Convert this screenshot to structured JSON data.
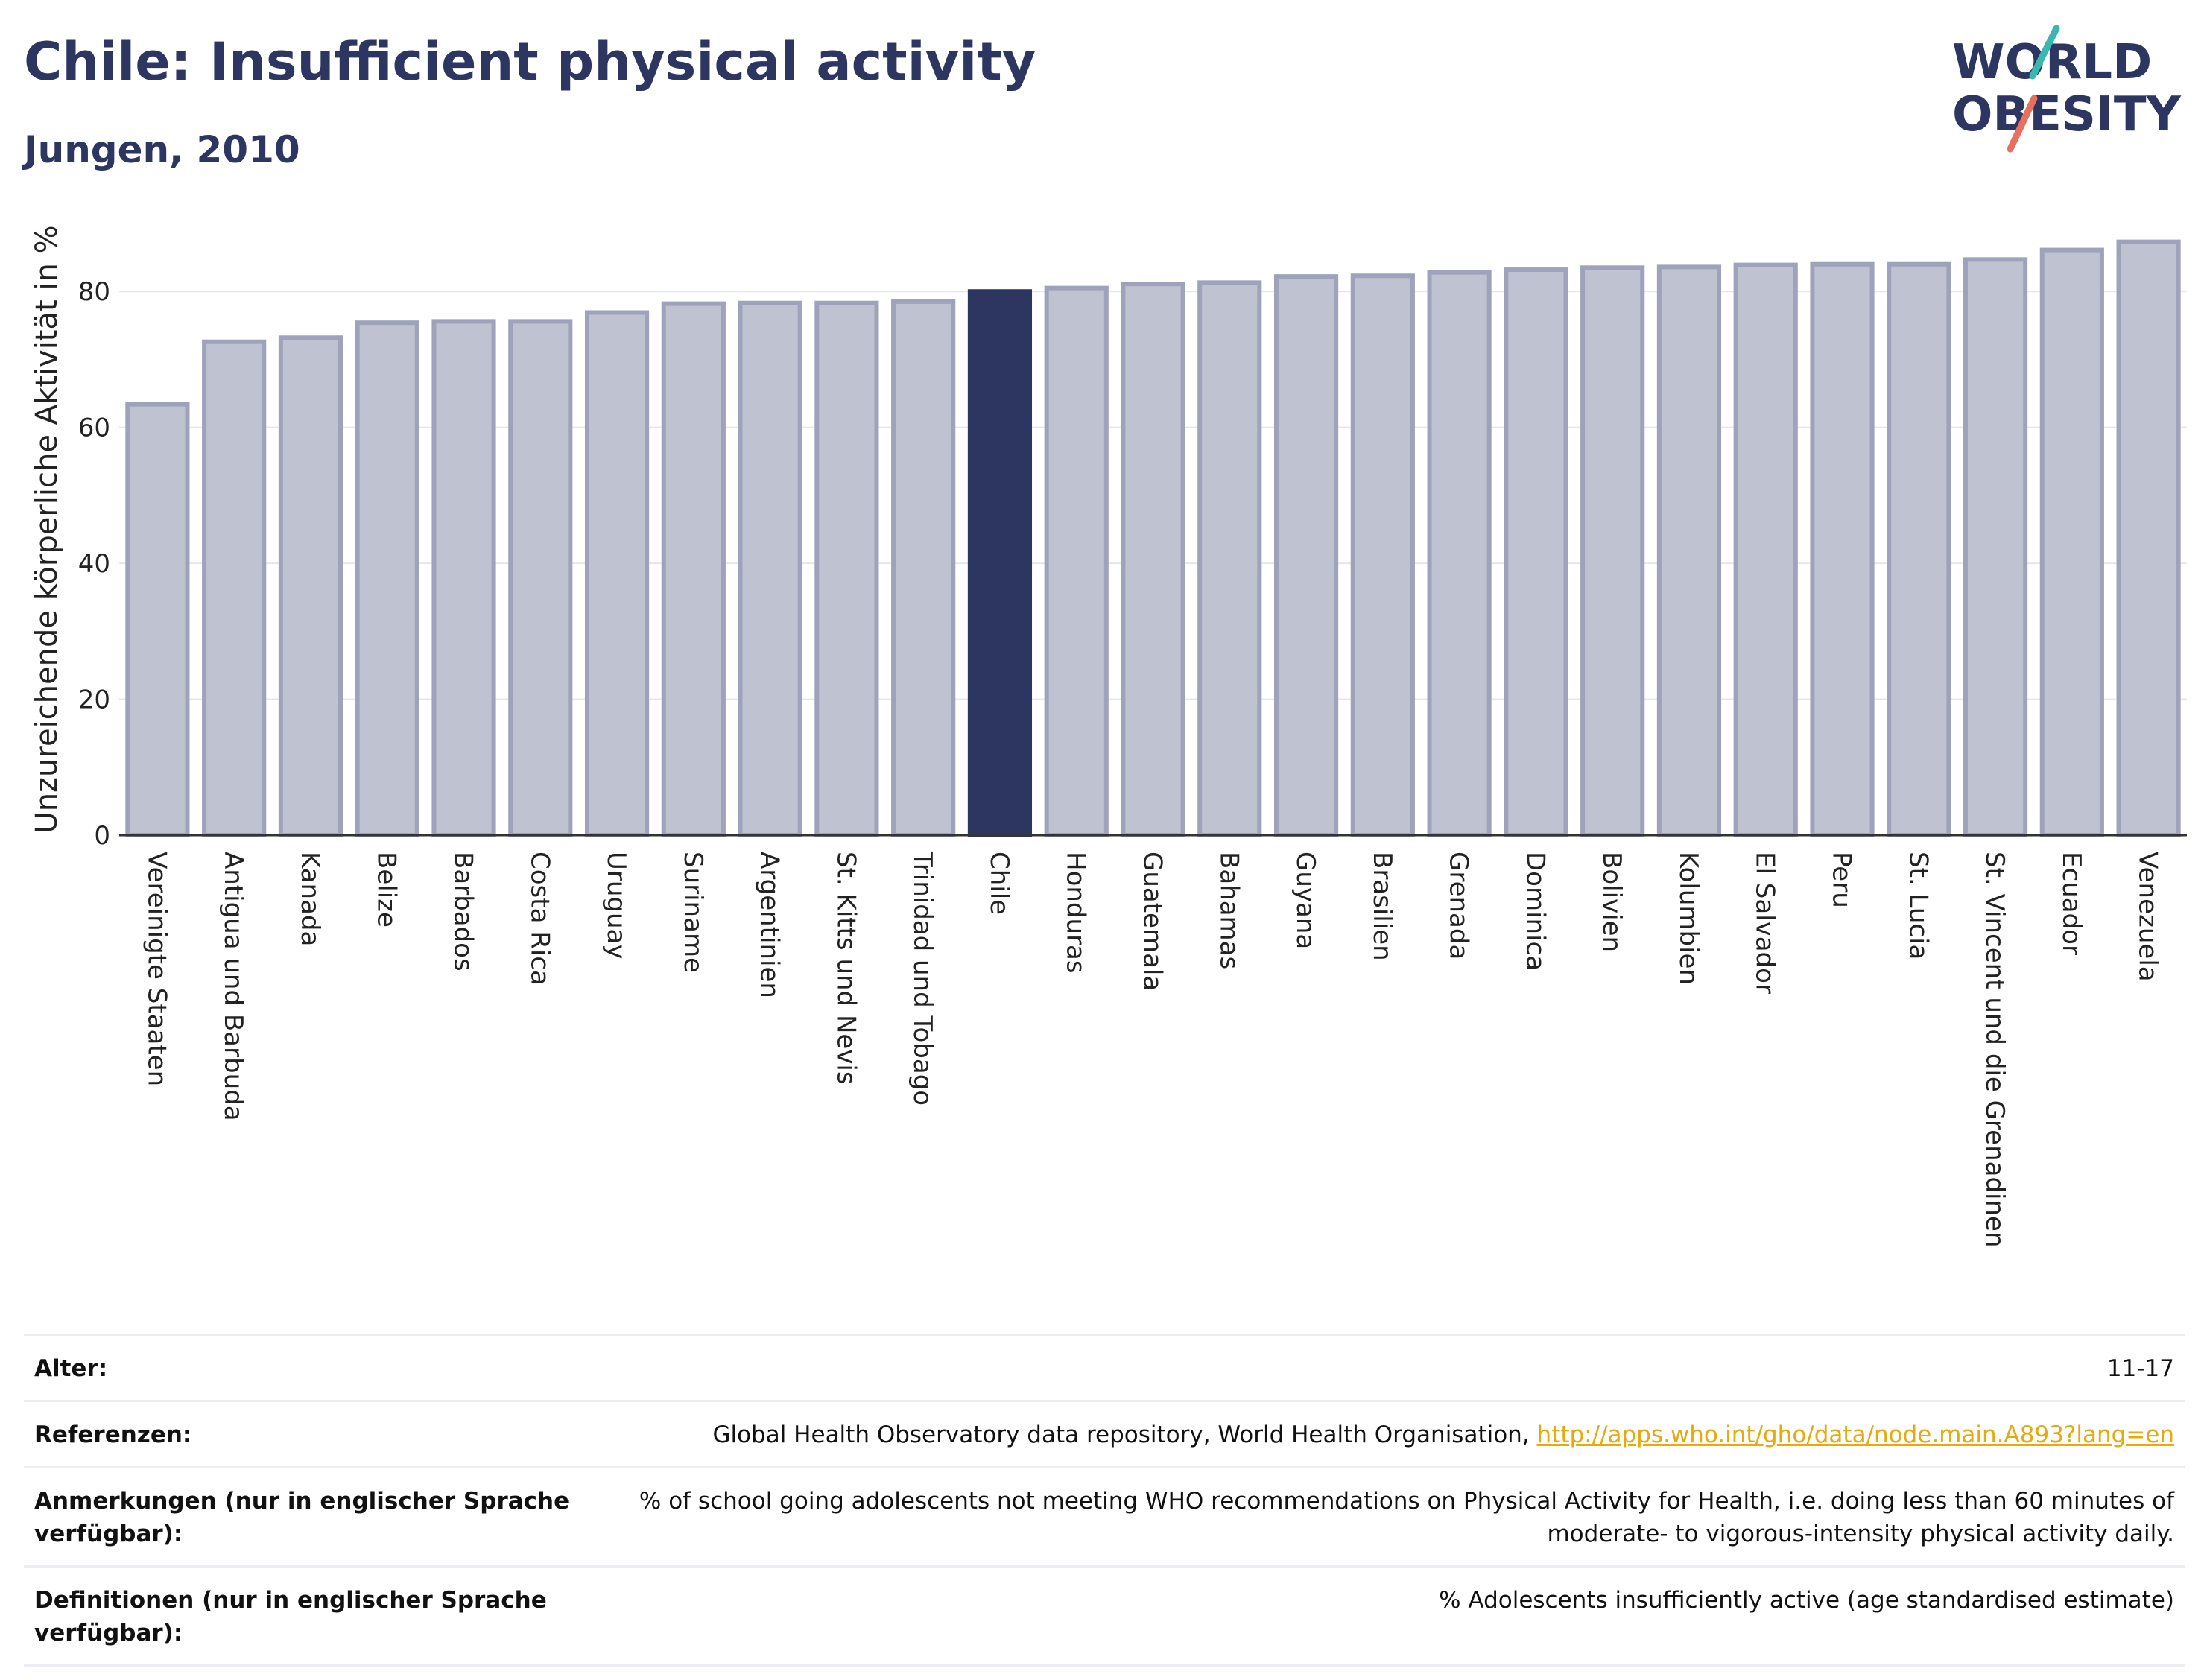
{
  "header": {
    "title": "Chile: Insufficient physical activity",
    "subtitle": "Jungen, 2010"
  },
  "logo": {
    "line1": "WORLD",
    "line2": "OBESITY"
  },
  "colors": {
    "highlight": "#2d3561",
    "bar_fill": "#bfc2d0",
    "bar_stroke": "#9ea3bb",
    "title": "#2d3561",
    "logo_teal": "#3ab8b0",
    "logo_coral": "#e8705f",
    "link": "#e8a90c"
  },
  "chart_data": {
    "type": "bar",
    "ylabel": "Unzureichende körperliche Aktivität in %",
    "xlabel": "",
    "ylim": [
      0,
      90
    ],
    "yticks": [
      0,
      20,
      40,
      60,
      80
    ],
    "grid": true,
    "highlight": "Chile",
    "categories": [
      "Vereinigte Staaten",
      "Antigua und Barbuda",
      "Kanada",
      "Belize",
      "Barbados",
      "Costa Rica",
      "Uruguay",
      "Suriname",
      "Argentinien",
      "St. Kitts und Nevis",
      "Trinidad und Tobago",
      "Chile",
      "Honduras",
      "Guatemala",
      "Bahamas",
      "Guyana",
      "Brasilien",
      "Grenada",
      "Dominica",
      "Bolivien",
      "Kolumbien",
      "El Salvador",
      "Peru",
      "St. Lucia",
      "St. Vincent und die Grenadinen",
      "Ecuador",
      "Venezuela"
    ],
    "values": [
      63.4,
      72.6,
      73.2,
      75.4,
      75.6,
      75.6,
      76.9,
      78.2,
      78.3,
      78.3,
      78.5,
      80.0,
      80.5,
      81.1,
      81.3,
      82.2,
      82.3,
      82.8,
      83.2,
      83.5,
      83.6,
      83.9,
      84.0,
      84.0,
      84.7,
      86.1,
      87.3
    ]
  },
  "meta": [
    {
      "key": "Alter:",
      "value": "11-17"
    },
    {
      "key": "Referenzen:",
      "value": "Global Health Observatory data repository, World Health Organisation,",
      "link": "http://apps.who.int/gho/data/node.main.A893?lang=en"
    },
    {
      "key": "Anmerkungen (nur in englischer Sprache verfügbar):",
      "value": "% of school going adolescents not meeting WHO recommendations on Physical Activity for Health, i.e. doing less than 60 minutes of moderate- to vigorous-intensity physical activity daily."
    },
    {
      "key": "Definitionen (nur in englischer Sprache verfügbar):",
      "value": "% Adolescents insufficiently active (age standardised estimate)"
    }
  ]
}
